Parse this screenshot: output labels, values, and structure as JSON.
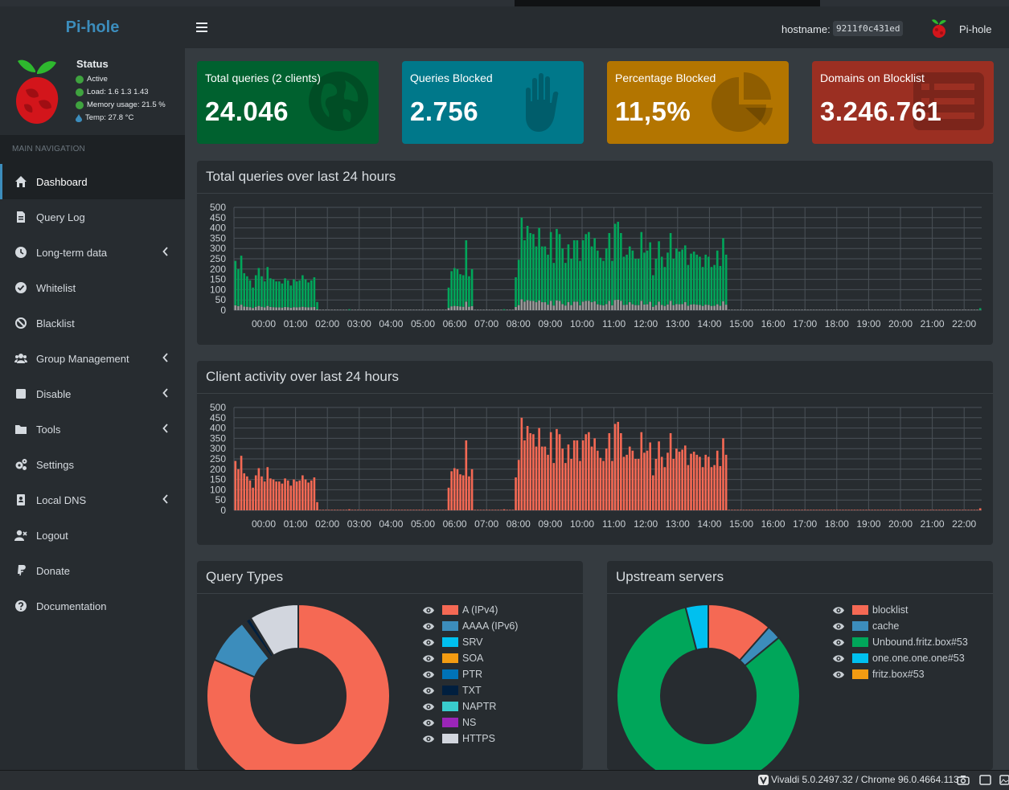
{
  "sidebar": {
    "brand": "Pi-hole",
    "status": {
      "title": "Status",
      "active": "Active",
      "load": "Load:  1.6  1.3  1.43",
      "memory": "Memory usage:  21.5 %",
      "temp": "Temp: 27.8 °C"
    },
    "nav_header": "MAIN NAVIGATION",
    "items": [
      {
        "label": "Dashboard",
        "icon": "home-icon",
        "active": true
      },
      {
        "label": "Query Log",
        "icon": "file-icon"
      },
      {
        "label": "Long-term data",
        "icon": "clock-icon",
        "submenu": true
      },
      {
        "label": "Whitelist",
        "icon": "check-circle-icon"
      },
      {
        "label": "Blacklist",
        "icon": "ban-icon"
      },
      {
        "label": "Group Management",
        "icon": "users-icon",
        "submenu": true
      },
      {
        "label": "Disable",
        "icon": "stop-icon",
        "submenu": true
      },
      {
        "label": "Tools",
        "icon": "folder-icon",
        "submenu": true
      },
      {
        "label": "Settings",
        "icon": "gears-icon"
      },
      {
        "label": "Local DNS",
        "icon": "address-book-icon",
        "submenu": true
      },
      {
        "label": "Logout",
        "icon": "user-x-icon"
      },
      {
        "label": "Donate",
        "icon": "paypal-icon"
      },
      {
        "label": "Documentation",
        "icon": "question-circle-icon"
      }
    ]
  },
  "header": {
    "hostname_label": "hostname:",
    "hostname_value": "9211f0c431ed",
    "name": "Pi-hole"
  },
  "stats": [
    {
      "label": "Total queries (2 clients)",
      "value": "24.046",
      "color": "#00612f",
      "icon": "globe-icon"
    },
    {
      "label": "Queries Blocked",
      "value": "2.756",
      "color": "#00788a",
      "icon": "hand-icon"
    },
    {
      "label": "Percentage Blocked",
      "value": "11,5%",
      "color": "#b37500",
      "icon": "pie-icon"
    },
    {
      "label": "Domains on Blocklist",
      "value": "3.246.761",
      "color": "#9b2f22",
      "icon": "list-icon"
    }
  ],
  "chart_data": [
    {
      "type": "bar",
      "title": "Total queries over last 24 hours",
      "ylim": [
        0,
        500
      ],
      "yticks": [
        "0",
        "50",
        "100",
        "150",
        "200",
        "250",
        "300",
        "350",
        "400",
        "450",
        "500"
      ],
      "xticks": [
        "00:00",
        "01:00",
        "02:00",
        "03:00",
        "04:00",
        "05:00",
        "06:00",
        "07:00",
        "08:00",
        "09:00",
        "10:00",
        "11:00",
        "12:00",
        "13:00",
        "14:00",
        "15:00",
        "16:00",
        "17:00",
        "18:00",
        "19:00",
        "20:00",
        "21:00",
        "22:00"
      ],
      "colors": {
        "permitted": "#00a65a",
        "blocked": "#999999"
      },
      "totals": [
        240,
        200,
        265,
        180,
        165,
        145,
        110,
        170,
        205,
        165,
        140,
        210,
        155,
        150,
        140,
        140,
        130,
        155,
        145,
        120,
        150,
        140,
        145,
        170,
        150,
        135,
        145,
        160,
        40,
        0,
        0,
        0,
        0,
        0,
        0,
        0,
        0,
        0,
        0,
        5,
        0,
        0,
        0,
        0,
        0,
        0,
        0,
        0,
        0,
        0,
        0,
        0,
        0,
        0,
        0,
        0,
        0,
        0,
        0,
        0,
        0,
        0,
        0,
        0,
        0,
        0,
        0,
        0,
        0,
        0,
        0,
        0,
        0,
        110,
        190,
        205,
        200,
        175,
        170,
        340,
        165,
        200,
        0,
        0,
        0,
        0,
        0,
        0,
        0,
        0,
        0,
        0,
        5,
        0,
        0,
        0,
        160,
        245,
        450,
        340,
        410,
        375,
        370,
        310,
        400,
        310,
        310,
        270,
        380,
        230,
        395,
        370,
        300,
        230,
        320,
        250,
        340,
        340,
        240,
        340,
        370,
        380,
        310,
        350,
        290,
        255,
        240,
        300,
        375,
        240,
        420,
        430,
        375,
        260,
        270,
        310,
        290,
        250,
        250,
        380,
        280,
        290,
        330,
        170,
        250,
        335,
        260,
        210,
        280,
        375,
        250,
        300,
        285,
        295,
        315,
        220,
        275,
        285,
        270,
        260,
        210,
        270,
        260,
        210,
        220,
        290,
        215,
        350,
        270,
        0,
        0,
        0,
        0,
        0,
        0,
        0,
        0,
        0,
        0,
        0,
        0,
        0,
        0,
        0,
        0,
        0,
        0,
        0,
        0,
        0,
        0,
        0,
        0,
        0,
        0,
        0,
        0,
        0,
        0,
        0,
        0,
        0,
        0,
        0,
        0,
        0,
        0,
        0,
        0,
        0,
        0,
        0,
        0,
        0,
        0,
        0,
        0,
        0,
        0,
        0,
        0,
        0,
        0,
        0,
        0,
        0,
        0,
        0,
        0,
        0,
        0,
        0,
        0,
        0,
        0,
        0,
        0,
        0,
        0,
        0,
        0,
        0,
        0,
        0,
        0,
        0,
        0,
        0,
        0,
        0,
        0,
        0,
        0,
        0,
        0,
        10
      ]
    },
    {
      "type": "bar",
      "title": "Client activity over last 24 hours",
      "ylim": [
        0,
        500
      ],
      "yticks": [
        "0",
        "50",
        "100",
        "150",
        "200",
        "250",
        "300",
        "350",
        "400",
        "450",
        "500"
      ],
      "xticks": [
        "00:00",
        "01:00",
        "02:00",
        "03:00",
        "04:00",
        "05:00",
        "06:00",
        "07:00",
        "08:00",
        "09:00",
        "10:00",
        "11:00",
        "12:00",
        "13:00",
        "14:00",
        "15:00",
        "16:00",
        "17:00",
        "18:00",
        "19:00",
        "20:00",
        "21:00",
        "22:00"
      ],
      "colors": {
        "client": "#f56954"
      }
    },
    {
      "type": "pie",
      "title": "Query Types",
      "labels": [
        "A (IPv4)",
        "AAAA (IPv6)",
        "SRV",
        "SOA",
        "PTR",
        "TXT",
        "NAPTR",
        "NS",
        "HTTPS"
      ],
      "values": [
        81.5,
        8.0,
        0.3,
        0.2,
        0.3,
        0.8,
        0.1,
        0.1,
        8.7
      ],
      "colors": [
        "#f56954",
        "#3c8dbc",
        "#00c0ef",
        "#f39c12",
        "#0073b7",
        "#001f3f",
        "#39cccc",
        "#9b25b8",
        "#d2d6de"
      ]
    },
    {
      "type": "pie",
      "title": "Upstream servers",
      "labels": [
        "blocklist",
        "cache",
        "Unbound.fritz.box#53",
        "one.one.one.one#53",
        "fritz.box#53"
      ],
      "values": [
        11.5,
        2.5,
        82.0,
        4.0,
        0.0
      ],
      "colors": [
        "#f56954",
        "#3c8dbc",
        "#00a65a",
        "#00c0ef",
        "#f39c12"
      ]
    }
  ],
  "statusbar": {
    "text": "Vivaldi 5.0.2497.32 / Chrome 96.0.4664.113"
  }
}
